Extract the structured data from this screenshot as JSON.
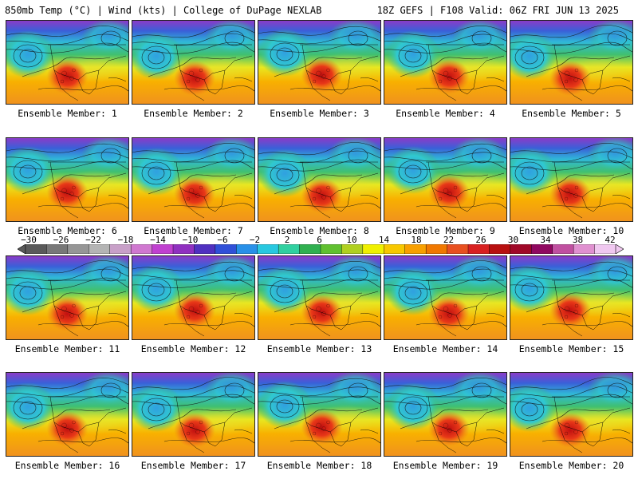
{
  "header": {
    "left_title": "850mb Temp (°C) | Wind (kts) | College of DuPage NEXLAB",
    "right_title": "18Z GEFS | F108 Valid: 06Z FRI JUN 13 2025"
  },
  "panels": [
    {
      "label": "Ensemble Member: 1"
    },
    {
      "label": "Ensemble Member: 2"
    },
    {
      "label": "Ensemble Member: 3"
    },
    {
      "label": "Ensemble Member: 4"
    },
    {
      "label": "Ensemble Member: 5"
    },
    {
      "label": "Ensemble Member: 6"
    },
    {
      "label": "Ensemble Member: 7"
    },
    {
      "label": "Ensemble Member: 8"
    },
    {
      "label": "Ensemble Member: 9"
    },
    {
      "label": "Ensemble Member: 10"
    },
    {
      "label": "Ensemble Member: 11"
    },
    {
      "label": "Ensemble Member: 12"
    },
    {
      "label": "Ensemble Member: 13"
    },
    {
      "label": "Ensemble Member: 14"
    },
    {
      "label": "Ensemble Member: 15"
    },
    {
      "label": "Ensemble Member: 16"
    },
    {
      "label": "Ensemble Member: 17"
    },
    {
      "label": "Ensemble Member: 18"
    },
    {
      "label": "Ensemble Member: 19"
    },
    {
      "label": "Ensemble Member: 20"
    }
  ],
  "colorbar": {
    "labels": [
      "−30",
      "−26",
      "−22",
      "−18",
      "−14",
      "−10",
      "−6",
      "−2",
      "2",
      "6",
      "10",
      "14",
      "18",
      "22",
      "26",
      "30",
      "34",
      "38",
      "42"
    ],
    "colors": [
      "#5a5a5a",
      "#787878",
      "#969696",
      "#b4b4b4",
      "#c8a0c8",
      "#d078d0",
      "#c040d0",
      "#9030c0",
      "#5030c0",
      "#3050d8",
      "#2890e8",
      "#28c8e0",
      "#30d0a0",
      "#30b050",
      "#60c030",
      "#b0d020",
      "#f0f000",
      "#f8c800",
      "#f8a000",
      "#f07800",
      "#e85020",
      "#d82020",
      "#b81010",
      "#a00828",
      "#900860",
      "#c050a0",
      "#e090d0",
      "#f0c8f0"
    ]
  }
}
